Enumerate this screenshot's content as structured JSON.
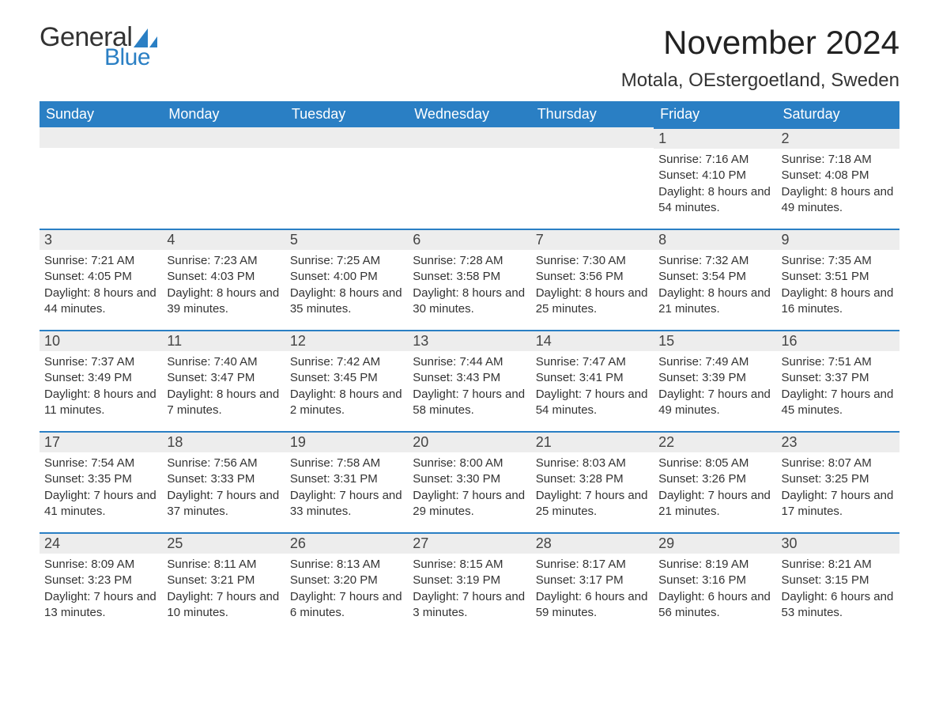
{
  "logo": {
    "text_general": "General",
    "text_blue": "Blue",
    "sail_color": "#2a7fc4",
    "general_color": "#333333"
  },
  "header": {
    "month_title": "November 2024",
    "location": "Motala, OEstergoetland, Sweden"
  },
  "colors": {
    "header_bg": "#2a7fc4",
    "header_text": "#ffffff",
    "day_head_bg": "#ededed",
    "day_head_border": "#2a7fc4",
    "text": "#333333",
    "background": "#ffffff"
  },
  "typography": {
    "month_title_fontsize": 42,
    "location_fontsize": 24,
    "weekday_fontsize": 18,
    "daynum_fontsize": 18,
    "body_fontsize": 15,
    "font_family": "Arial"
  },
  "layout": {
    "columns": 7,
    "rows": 5,
    "leading_empty_cells": 5
  },
  "weekdays": [
    "Sunday",
    "Monday",
    "Tuesday",
    "Wednesday",
    "Thursday",
    "Friday",
    "Saturday"
  ],
  "labels": {
    "sunrise": "Sunrise",
    "sunset": "Sunset",
    "daylight": "Daylight"
  },
  "days": [
    {
      "n": 1,
      "sunrise": "7:16 AM",
      "sunset": "4:10 PM",
      "daylight": "8 hours and 54 minutes."
    },
    {
      "n": 2,
      "sunrise": "7:18 AM",
      "sunset": "4:08 PM",
      "daylight": "8 hours and 49 minutes."
    },
    {
      "n": 3,
      "sunrise": "7:21 AM",
      "sunset": "4:05 PM",
      "daylight": "8 hours and 44 minutes."
    },
    {
      "n": 4,
      "sunrise": "7:23 AM",
      "sunset": "4:03 PM",
      "daylight": "8 hours and 39 minutes."
    },
    {
      "n": 5,
      "sunrise": "7:25 AM",
      "sunset": "4:00 PM",
      "daylight": "8 hours and 35 minutes."
    },
    {
      "n": 6,
      "sunrise": "7:28 AM",
      "sunset": "3:58 PM",
      "daylight": "8 hours and 30 minutes."
    },
    {
      "n": 7,
      "sunrise": "7:30 AM",
      "sunset": "3:56 PM",
      "daylight": "8 hours and 25 minutes."
    },
    {
      "n": 8,
      "sunrise": "7:32 AM",
      "sunset": "3:54 PM",
      "daylight": "8 hours and 21 minutes."
    },
    {
      "n": 9,
      "sunrise": "7:35 AM",
      "sunset": "3:51 PM",
      "daylight": "8 hours and 16 minutes."
    },
    {
      "n": 10,
      "sunrise": "7:37 AM",
      "sunset": "3:49 PM",
      "daylight": "8 hours and 11 minutes."
    },
    {
      "n": 11,
      "sunrise": "7:40 AM",
      "sunset": "3:47 PM",
      "daylight": "8 hours and 7 minutes."
    },
    {
      "n": 12,
      "sunrise": "7:42 AM",
      "sunset": "3:45 PM",
      "daylight": "8 hours and 2 minutes."
    },
    {
      "n": 13,
      "sunrise": "7:44 AM",
      "sunset": "3:43 PM",
      "daylight": "7 hours and 58 minutes."
    },
    {
      "n": 14,
      "sunrise": "7:47 AM",
      "sunset": "3:41 PM",
      "daylight": "7 hours and 54 minutes."
    },
    {
      "n": 15,
      "sunrise": "7:49 AM",
      "sunset": "3:39 PM",
      "daylight": "7 hours and 49 minutes."
    },
    {
      "n": 16,
      "sunrise": "7:51 AM",
      "sunset": "3:37 PM",
      "daylight": "7 hours and 45 minutes."
    },
    {
      "n": 17,
      "sunrise": "7:54 AM",
      "sunset": "3:35 PM",
      "daylight": "7 hours and 41 minutes."
    },
    {
      "n": 18,
      "sunrise": "7:56 AM",
      "sunset": "3:33 PM",
      "daylight": "7 hours and 37 minutes."
    },
    {
      "n": 19,
      "sunrise": "7:58 AM",
      "sunset": "3:31 PM",
      "daylight": "7 hours and 33 minutes."
    },
    {
      "n": 20,
      "sunrise": "8:00 AM",
      "sunset": "3:30 PM",
      "daylight": "7 hours and 29 minutes."
    },
    {
      "n": 21,
      "sunrise": "8:03 AM",
      "sunset": "3:28 PM",
      "daylight": "7 hours and 25 minutes."
    },
    {
      "n": 22,
      "sunrise": "8:05 AM",
      "sunset": "3:26 PM",
      "daylight": "7 hours and 21 minutes."
    },
    {
      "n": 23,
      "sunrise": "8:07 AM",
      "sunset": "3:25 PM",
      "daylight": "7 hours and 17 minutes."
    },
    {
      "n": 24,
      "sunrise": "8:09 AM",
      "sunset": "3:23 PM",
      "daylight": "7 hours and 13 minutes."
    },
    {
      "n": 25,
      "sunrise": "8:11 AM",
      "sunset": "3:21 PM",
      "daylight": "7 hours and 10 minutes."
    },
    {
      "n": 26,
      "sunrise": "8:13 AM",
      "sunset": "3:20 PM",
      "daylight": "7 hours and 6 minutes."
    },
    {
      "n": 27,
      "sunrise": "8:15 AM",
      "sunset": "3:19 PM",
      "daylight": "7 hours and 3 minutes."
    },
    {
      "n": 28,
      "sunrise": "8:17 AM",
      "sunset": "3:17 PM",
      "daylight": "6 hours and 59 minutes."
    },
    {
      "n": 29,
      "sunrise": "8:19 AM",
      "sunset": "3:16 PM",
      "daylight": "6 hours and 56 minutes."
    },
    {
      "n": 30,
      "sunrise": "8:21 AM",
      "sunset": "3:15 PM",
      "daylight": "6 hours and 53 minutes."
    }
  ]
}
